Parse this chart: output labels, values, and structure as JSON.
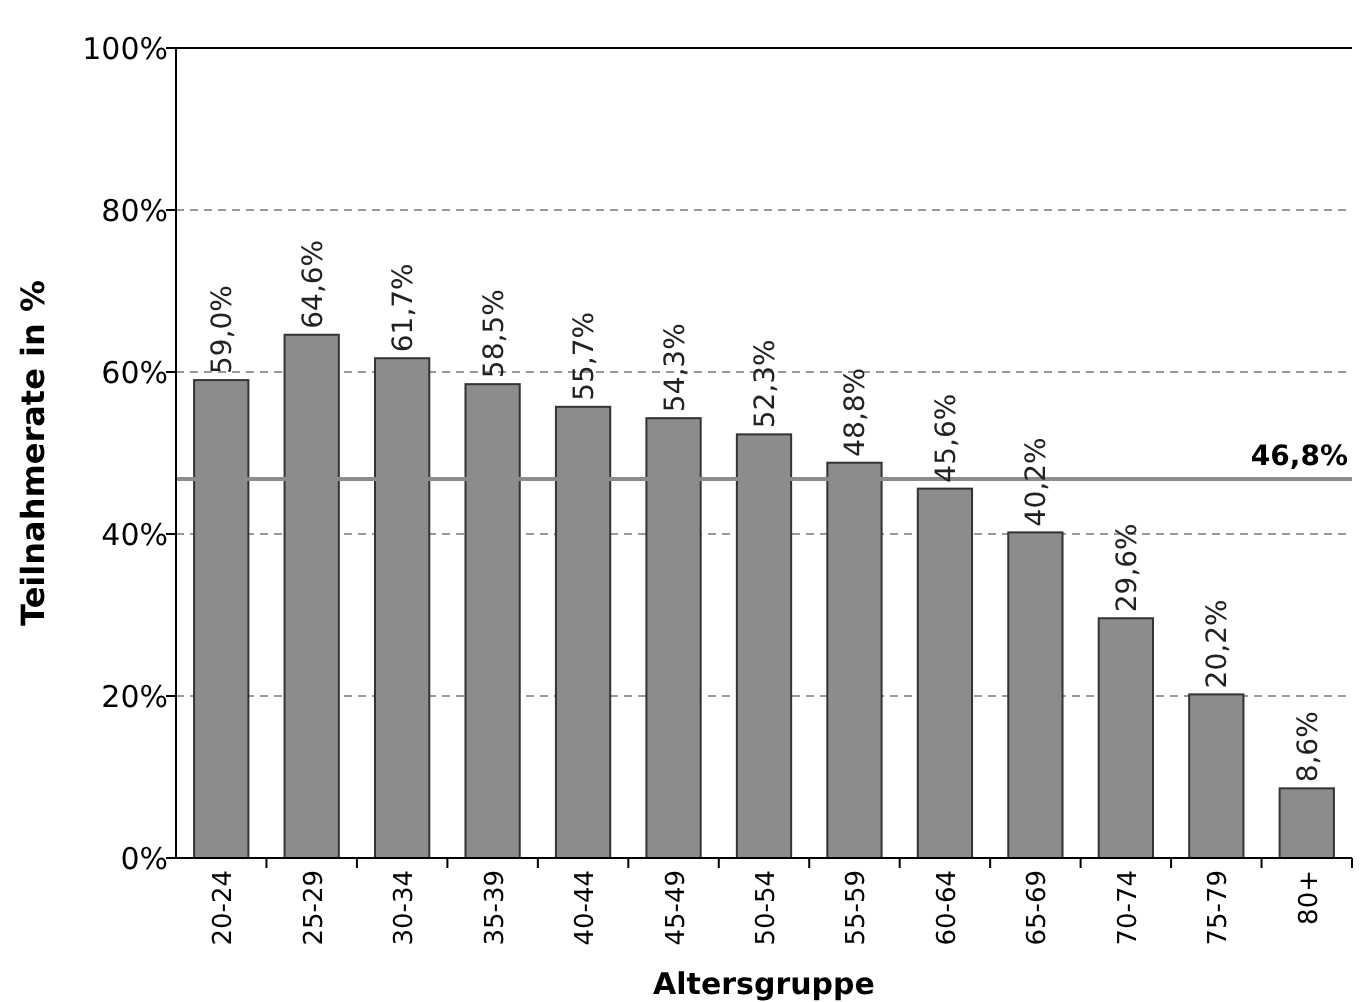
{
  "chart_data": {
    "type": "bar",
    "xlabel": "Altersgruppe",
    "ylabel": "Teilnahmerate in %",
    "categories": [
      "20-24",
      "25-29",
      "30-34",
      "35-39",
      "40-44",
      "45-49",
      "50-54",
      "55-59",
      "60-64",
      "65-69",
      "70-74",
      "75-79",
      "80+"
    ],
    "values": [
      59.0,
      64.6,
      61.7,
      58.5,
      55.7,
      54.3,
      52.3,
      48.8,
      45.6,
      40.2,
      29.6,
      20.2,
      8.6
    ],
    "value_labels": [
      "59,0%",
      "64,6%",
      "61,7%",
      "58,5%",
      "55,7%",
      "54,3%",
      "52,3%",
      "48,8%",
      "45,6%",
      "40,2%",
      "29,6%",
      "20,2%",
      "8,6%"
    ],
    "color": "#8c8c8c",
    "ylim": [
      0,
      100
    ],
    "yticks": [
      {
        "value": 0,
        "label": "0%"
      },
      {
        "value": 20,
        "label": "20%"
      },
      {
        "value": 40,
        "label": "40%"
      },
      {
        "value": 60,
        "label": "60%"
      },
      {
        "value": 80,
        "label": "80%"
      },
      {
        "value": 100,
        "label": "100%"
      }
    ],
    "grid": "y",
    "ref_lines": [
      {
        "axis": "y",
        "value": 46.8,
        "label": "46,8%",
        "color": "#8c8c8c",
        "line_style": "solid"
      }
    ]
  }
}
